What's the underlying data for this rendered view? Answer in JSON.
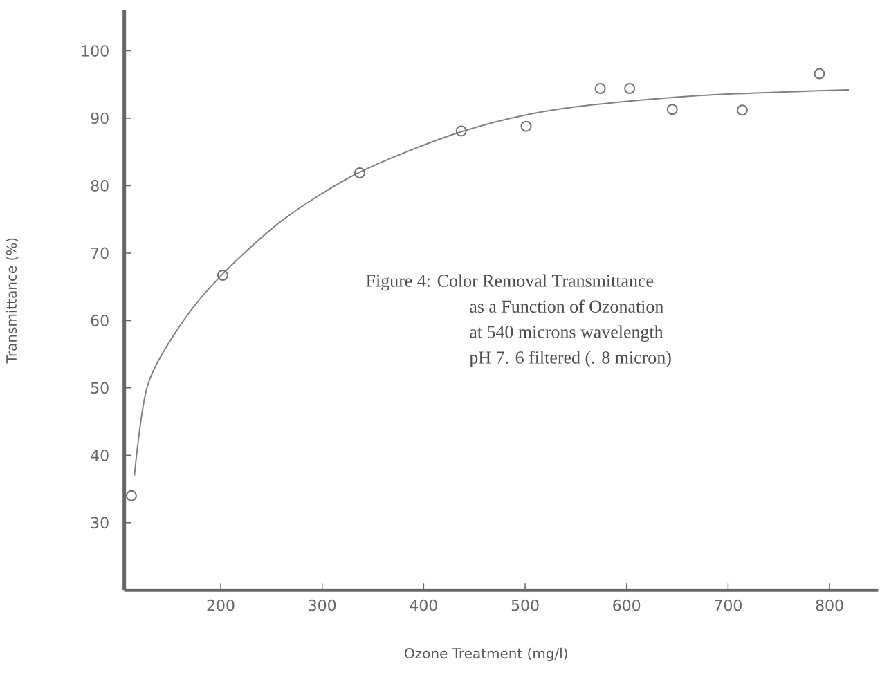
{
  "chart_data": {
    "type": "scatter",
    "xlabel": "Ozone Treatment (mg/l)",
    "ylabel": "Transmittance (%)",
    "annotations": [
      "Figure 4:  Color Removal Transmittance",
      "as a Function of Ozonation",
      "at 540 microns wavelength",
      "pH 7. 6 filtered (. 8 micron)"
    ],
    "xlim": [
      105,
      848
    ],
    "ylim": [
      20,
      106
    ],
    "xticks": [
      200,
      300,
      400,
      500,
      600,
      700,
      800
    ],
    "yticks": [
      30,
      40,
      50,
      60,
      70,
      80,
      90,
      100
    ],
    "grid": false,
    "series": [
      {
        "color": "#707070",
        "marker": "circle",
        "x": [
          112,
          202,
          337,
          437,
          501,
          574,
          603,
          645,
          714,
          790
        ],
        "values": [
          34.0,
          66.7,
          81.9,
          88.1,
          88.8,
          94.4,
          94.4,
          91.3,
          91.2,
          96.6
        ]
      },
      {
        "type": "line",
        "color": "#808080",
        "marker": "none",
        "line_style": "solid",
        "x": [
          115,
          128,
          162,
          202,
          262,
          337,
          437,
          531,
          666,
          819
        ],
        "values": [
          37,
          50.4,
          59.7,
          66.9,
          75,
          82,
          88,
          91.3,
          93.3,
          94.2
        ]
      }
    ]
  }
}
